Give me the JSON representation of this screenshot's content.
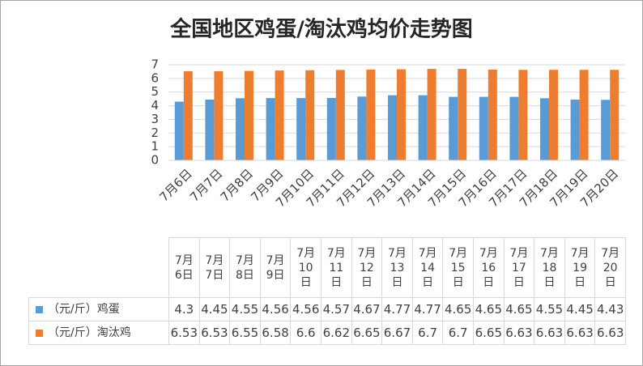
{
  "chart_data": {
    "type": "bar",
    "title": "全国地区鸡蛋/淘汰鸡均价走势图",
    "categories": [
      "7月6日",
      "7月7日",
      "7月8日",
      "7月9日",
      "7月10日",
      "7月11日",
      "7月12日",
      "7月13日",
      "7月14日",
      "7月15日",
      "7月16日",
      "7月17日",
      "7月18日",
      "7月19日",
      "7月20日"
    ],
    "series": [
      {
        "name": "（元/斤）鸡蛋",
        "color": "#5b9bd5",
        "values": [
          4.3,
          4.45,
          4.55,
          4.56,
          4.56,
          4.57,
          4.67,
          4.77,
          4.77,
          4.65,
          4.65,
          4.65,
          4.55,
          4.45,
          4.43
        ]
      },
      {
        "name": "（元/斤）淘汰鸡",
        "color": "#ed7d31",
        "values": [
          6.53,
          6.53,
          6.55,
          6.58,
          6.6,
          6.62,
          6.65,
          6.67,
          6.7,
          6.7,
          6.65,
          6.63,
          6.63,
          6.63,
          6.63
        ]
      }
    ],
    "ylim": [
      0,
      7
    ],
    "yticks": [
      0,
      1,
      2,
      3,
      4,
      5,
      6,
      7
    ],
    "grid": true,
    "data_table": true
  }
}
